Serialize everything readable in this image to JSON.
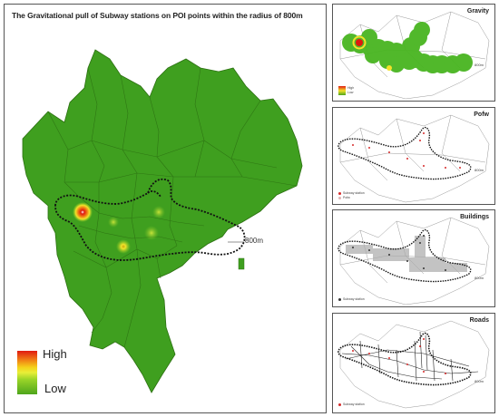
{
  "main": {
    "title": "The Gravitational pull of Subway stations on POI points within the radius of 800m",
    "legend": {
      "high": "High",
      "low": "Low"
    },
    "ring_label": "800m",
    "colors": {
      "district_fill": "#3f9f1f",
      "district_stroke": "#2c7012",
      "hot": "#e0190f",
      "warm": "#f3e22a",
      "ring": "#111111"
    }
  },
  "panels": [
    {
      "id": "gravity",
      "title": "Gravity",
      "legend": [
        "High",
        "Low"
      ],
      "ring_label": "800m"
    },
    {
      "id": "pofw",
      "title": "Pofw",
      "legend": [
        "Subway station",
        "Pofw"
      ],
      "ring_label": "800m"
    },
    {
      "id": "buildings",
      "title": "Buildings",
      "legend": [
        "Subway station"
      ],
      "ring_label": "800m"
    },
    {
      "id": "roads",
      "title": "Roads",
      "legend": [
        "Subway station"
      ],
      "ring_label": "800m"
    }
  ],
  "icons": [
    "subway-station-marker",
    "pofw-marker"
  ]
}
